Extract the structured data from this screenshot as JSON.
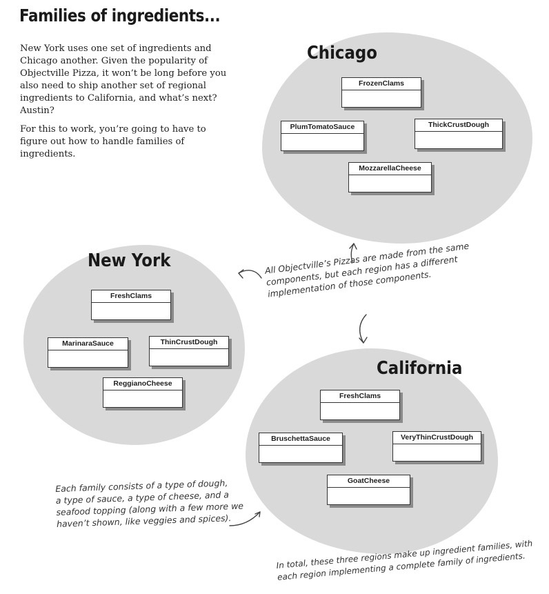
{
  "heading": "Families of ingredients...",
  "intro": {
    "paragraph1": "New York uses one set of ingredients and Chicago another. Given the popularity of Objectville Pizza, it won’t be long before you also need to ship another set of regional ingredients to California, and what’s next? Austin?",
    "paragraph2": "For this to work, you’re going to have to figure out how to handle families of ingredients."
  },
  "regions": {
    "chicago": {
      "title": "Chicago",
      "classes": [
        "FrozenClams",
        "PlumTomatoSauce",
        "ThickCrustDough",
        "MozzarellaCheese"
      ]
    },
    "new_york": {
      "title": "New York",
      "classes": [
        "FreshClams",
        "MarinaraSauce",
        "ThinCrustDough",
        "ReggianoCheese"
      ]
    },
    "california": {
      "title": "California",
      "classes": [
        "FreshClams",
        "BruschettaSauce",
        "VeryThinCrustDough",
        "GoatCheese"
      ]
    }
  },
  "annotations": {
    "components_line1": "All Objectville’s Pizzas are made from the same",
    "components_line2": "components, but each region has a different",
    "components_line3": "implementation of those components.",
    "family_line1": "Each family consists of a type of dough,",
    "family_line2": "a type of sauce, a type of cheese, and a",
    "family_line3": "seafood topping (along with a few more we",
    "family_line4": "haven’t shown, like veggies and spices).",
    "total_line1": "In total, these three regions make up ingredient families, with",
    "total_line2": "each region implementing a complete family of ingredients."
  },
  "colors": {
    "region_fill": "#d9d9d9",
    "box_shadow": "#8a8a8a",
    "text": "#1e1e1e"
  }
}
